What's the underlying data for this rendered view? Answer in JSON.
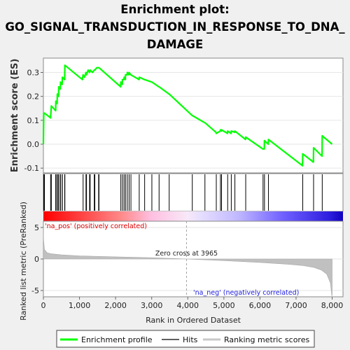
{
  "chart_data": {
    "type": "line",
    "title_lines": [
      "Enrichment plot:",
      "GO_SIGNAL_TRANSDUCTION_IN_RESPONSE_TO_DNA_",
      "DAMAGE"
    ],
    "top_panel": {
      "ylabel": "Enrichment score (ES)",
      "ylim": [
        -0.12,
        0.36
      ],
      "yticks": [
        "-0.1",
        "0.0",
        "0.1",
        "0.2",
        "0.3"
      ],
      "ytick_values": [
        -0.1,
        0.0,
        0.1,
        0.2,
        0.3
      ],
      "series": [
        {
          "name": "Enrichment profile",
          "color": "#00ff00",
          "x": [
            0,
            10,
            30,
            200,
            220,
            340,
            345,
            380,
            385,
            420,
            425,
            470,
            475,
            520,
            525,
            590,
            595,
            1080,
            1100,
            1140,
            1180,
            1195,
            1240,
            1280,
            1295,
            1360,
            1410,
            1425,
            1480,
            1530,
            1540,
            2140,
            2145,
            2185,
            2190,
            2230,
            2235,
            2270,
            2275,
            2320,
            2325,
            2370,
            2375,
            2420,
            2425,
            2650,
            2655,
            2800,
            2805,
            3000,
            3005,
            3200,
            3205,
            3480,
            3485,
            4120,
            4125,
            4470,
            4475,
            4780,
            4790,
            4900,
            4905,
            4930,
            4935,
            5100,
            5105,
            5200,
            5205,
            5300,
            5305,
            5600,
            5605,
            6080,
            6085,
            6120,
            6125,
            6230,
            6235,
            7180,
            7185,
            7480,
            7485,
            7720,
            7725,
            8000
          ],
          "y": [
            0.0,
            0.13,
            0.13,
            0.11,
            0.16,
            0.14,
            0.18,
            0.17,
            0.21,
            0.2,
            0.24,
            0.23,
            0.26,
            0.25,
            0.28,
            0.27,
            0.33,
            0.27,
            0.29,
            0.28,
            0.3,
            0.29,
            0.31,
            0.3,
            0.31,
            0.3,
            0.31,
            0.31,
            0.32,
            0.32,
            0.32,
            0.24,
            0.26,
            0.25,
            0.27,
            0.27,
            0.28,
            0.27,
            0.29,
            0.29,
            0.3,
            0.29,
            0.3,
            0.29,
            0.29,
            0.27,
            0.28,
            0.27,
            0.27,
            0.26,
            0.26,
            0.24,
            0.24,
            0.21,
            0.21,
            0.12,
            0.12,
            0.09,
            0.09,
            0.05,
            0.045,
            0.055,
            0.06,
            0.055,
            0.06,
            0.045,
            0.055,
            0.045,
            0.055,
            0.05,
            0.055,
            0.02,
            0.03,
            -0.02,
            -0.02,
            -0.02,
            0.015,
            0.0,
            0.02,
            -0.09,
            -0.04,
            -0.075,
            -0.015,
            -0.05,
            0.035,
            0.0
          ]
        }
      ]
    },
    "hits": {
      "name": "Hits",
      "color": "#000000",
      "positions": [
        10,
        30,
        200,
        220,
        340,
        345,
        380,
        385,
        420,
        425,
        470,
        475,
        520,
        525,
        590,
        595,
        1100,
        1180,
        1195,
        1280,
        1295,
        1410,
        1425,
        1530,
        1540,
        2145,
        2190,
        2235,
        2275,
        2325,
        2375,
        2425,
        2655,
        2805,
        3005,
        3205,
        3485,
        4125,
        4475,
        4790,
        4905,
        4935,
        5105,
        5205,
        5305,
        5605,
        6085,
        6125,
        6235,
        7185,
        7485,
        7725
      ]
    },
    "middle_panel": {
      "ylabel": "Ranked list metric (PreRanked)",
      "ylim": [
        -6,
        6
      ],
      "yticks": [
        "-5",
        "0",
        "5"
      ],
      "ytick_values": [
        -5,
        0,
        5
      ],
      "xlabel": "Rank in Ordered Dataset",
      "xlim": [
        0,
        8300
      ],
      "xticks": [
        "0",
        "1,000",
        "2,000",
        "3,000",
        "4,000",
        "5,000",
        "6,000",
        "7,000",
        "8,000"
      ],
      "xtick_values": [
        0,
        1000,
        2000,
        3000,
        4000,
        5000,
        6000,
        7000,
        8000
      ],
      "metric": {
        "name": "Ranking metric scores",
        "color": "#c0c0c0",
        "x": [
          0,
          5,
          30,
          100,
          200,
          500,
          1000,
          2000,
          3000,
          3965,
          5000,
          6000,
          6800,
          7200,
          7500,
          7700,
          7850,
          7950,
          7990,
          8000
        ],
        "y": [
          5.0,
          3.0,
          1.5,
          1.0,
          0.85,
          0.65,
          0.5,
          0.35,
          0.2,
          0.0,
          -0.25,
          -0.55,
          -0.85,
          -1.05,
          -1.35,
          -1.75,
          -2.4,
          -3.8,
          -5.8,
          -5.8
        ]
      },
      "zero_cross_label": "Zero cross at 3965",
      "zero_cross_rank": 3965,
      "pos_label": "'na_pos' (positively correlated)",
      "neg_label": "'na_neg' (negatively correlated)",
      "pos_color": "#ff0000",
      "neg_color": "#0000ff"
    },
    "legend": {
      "placement": "bottom",
      "entries": [
        {
          "label": "Enrichment profile",
          "color": "#00ff00"
        },
        {
          "label": "Hits",
          "color": "#606060"
        },
        {
          "label": "Ranking metric scores",
          "color": "#c8c8c8"
        }
      ]
    }
  }
}
